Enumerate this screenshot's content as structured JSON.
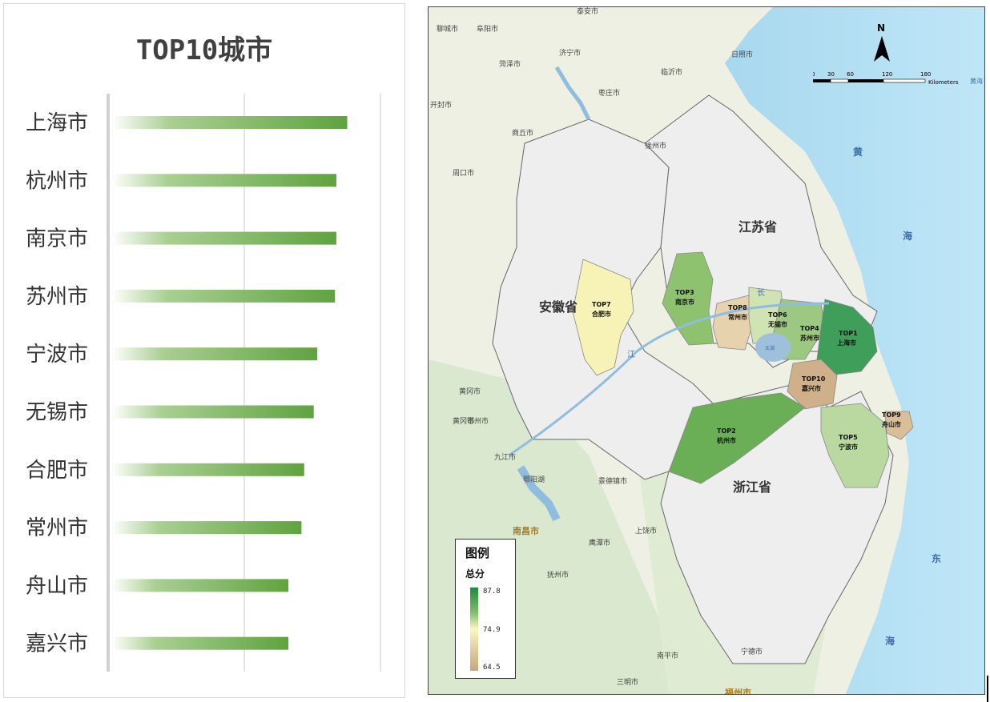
{
  "chart_data": {
    "type": "bar",
    "title": "TOP10城市",
    "categories": [
      "上海市",
      "杭州市",
      "南京市",
      "苏州市",
      "宁波市",
      "无锡市",
      "合肥市",
      "常州市",
      "舟山市",
      "嘉兴市"
    ],
    "values": [
      87.8,
      83.8,
      83.8,
      83.3,
      76.8,
      75.5,
      72.0,
      71.0,
      66.2,
      66.2
    ],
    "xlim": [
      0,
      100
    ],
    "grid": true,
    "colors": {
      "bar_start": "#ffffff",
      "bar_end": "#5fa33f"
    }
  },
  "map": {
    "regions": [
      {
        "name": "江苏省",
        "label": "江苏省"
      },
      {
        "name": "安徽省",
        "label": "安徽省"
      },
      {
        "name": "浙江省",
        "label": "浙江省"
      }
    ],
    "cities": [
      {
        "top": "TOP1",
        "name": "上海市",
        "color": "#3f9e5a"
      },
      {
        "top": "TOP2",
        "name": "杭州市",
        "color": "#6aaf55"
      },
      {
        "top": "TOP3",
        "name": "南京市",
        "color": "#8ec26f"
      },
      {
        "top": "TOP4",
        "name": "苏州市",
        "color": "#9dc882"
      },
      {
        "top": "TOP5",
        "name": "宁波市",
        "color": "#b9d9a0"
      },
      {
        "top": "TOP6",
        "name": "无锡市",
        "color": "#cfe3b3"
      },
      {
        "top": "TOP7",
        "name": "合肥市",
        "color": "#f7f2b6"
      },
      {
        "top": "TOP8",
        "name": "常州市",
        "color": "#e6d3ae"
      },
      {
        "top": "TOP9",
        "name": "舟山市",
        "color": "#d8bf98"
      },
      {
        "top": "TOP10",
        "name": "嘉兴市",
        "color": "#cfb08a"
      }
    ],
    "place_names": [
      "泰安市",
      "临沂市",
      "日照市",
      "济宁市",
      "菏泽市",
      "枣庄市",
      "徐州市",
      "商丘市",
      "开封市",
      "周口市",
      "聊城市",
      "阜阳市",
      "黄冈市",
      "九江市",
      "鄂阳湖",
      "景德镇市",
      "南昌市",
      "上饶市",
      "鹰潭市",
      "抚州市",
      "南平市",
      "宁德市",
      "三明市",
      "福州市",
      "黄冈市",
      "鄂州市"
    ],
    "sea_labels": [
      "黄",
      "海",
      "东",
      "海",
      "黄海"
    ],
    "water_labels": [
      "长",
      "江",
      "太湖"
    ],
    "legend": {
      "title": "图例",
      "subtitle": "总分",
      "max": "87.8",
      "mid": "74.9",
      "min": "64.5"
    },
    "scale": {
      "ticks": [
        "0",
        "30",
        "60",
        "120",
        "180"
      ],
      "unit": "Kilometers"
    },
    "north": "N"
  }
}
